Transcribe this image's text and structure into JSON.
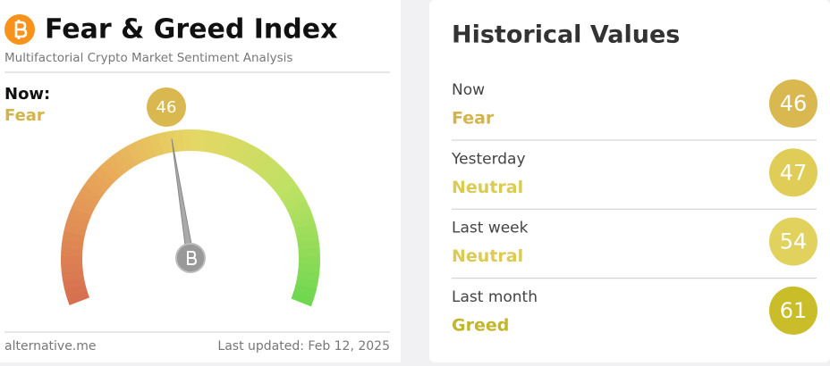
{
  "header": {
    "title": "Fear & Greed Index",
    "subtitle": "Multifactorial Crypto Market Sentiment Analysis"
  },
  "now": {
    "label": "Now:",
    "status": "Fear",
    "value": 46,
    "scale": [
      0,
      100
    ]
  },
  "footer": {
    "source": "alternative.me",
    "updated": "Last updated: Feb 12, 2025"
  },
  "historical": {
    "title": "Historical Values",
    "rows": [
      {
        "period": "Now",
        "status": "Fear",
        "value": 46
      },
      {
        "period": "Yesterday",
        "status": "Neutral",
        "value": 47
      },
      {
        "period": "Last week",
        "status": "Neutral",
        "value": 54
      },
      {
        "period": "Last month",
        "status": "Greed",
        "value": 61
      }
    ]
  }
}
